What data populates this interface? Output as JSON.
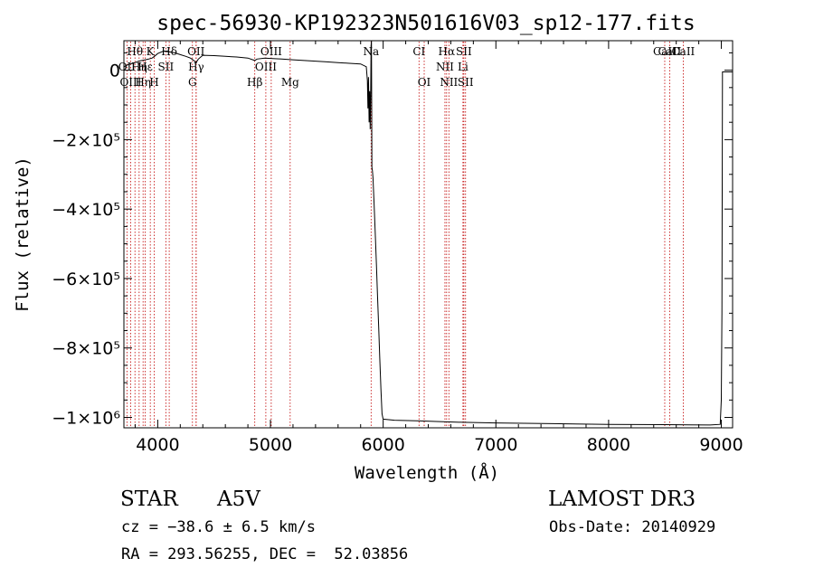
{
  "chart_data": {
    "type": "line",
    "title": "spec-56930-KP192323N501616V03_sp12-177.fits",
    "xlabel": "Wavelength (Å)",
    "ylabel": "Flux (relative)",
    "xlim": [
      3700,
      9100
    ],
    "ylim": [
      -1030000,
      85000
    ],
    "xticks": [
      {
        "value": 4000,
        "label": "4000"
      },
      {
        "value": 5000,
        "label": "5000"
      },
      {
        "value": 6000,
        "label": "6000"
      },
      {
        "value": 7000,
        "label": "7000"
      },
      {
        "value": 8000,
        "label": "8000"
      },
      {
        "value": 9000,
        "label": "9000"
      }
    ],
    "yticks": [
      {
        "value": 0,
        "label": "0"
      },
      {
        "value": -200000,
        "label": "−2×10⁵"
      },
      {
        "value": -400000,
        "label": "−4×10⁵"
      },
      {
        "value": -600000,
        "label": "−6×10⁵"
      },
      {
        "value": -800000,
        "label": "−8×10⁵"
      },
      {
        "value": -1000000,
        "label": "−1×10⁶"
      }
    ],
    "series": [
      {
        "x": [
          3700,
          3730,
          3760,
          3800,
          3830,
          3860,
          3890,
          3920,
          3950,
          3970,
          4000,
          4050,
          4100,
          4150,
          4200,
          4250,
          4290,
          4320,
          4340,
          4360,
          4400,
          4500,
          4600,
          4700,
          4800,
          4861,
          4880,
          4950,
          5000,
          5100,
          5200,
          5300,
          5400,
          5500,
          5600,
          5700,
          5800,
          5850,
          5860,
          5865,
          5870,
          5875,
          5880,
          5885,
          5890,
          5893,
          5896,
          5900,
          5905,
          5910,
          5920,
          5930,
          5940,
          5950,
          5960,
          5970,
          5980,
          5990,
          6000,
          6100,
          6300,
          6500,
          6700,
          7000,
          7500,
          8000,
          8500,
          8900,
          8990,
          9000,
          9005,
          9010,
          9100
        ],
        "y": [
          10000,
          15000,
          18000,
          22000,
          26000,
          28000,
          30000,
          32000,
          35000,
          40000,
          48000,
          55000,
          53000,
          50000,
          45000,
          40000,
          35000,
          28000,
          22000,
          32000,
          43000,
          42000,
          40000,
          38000,
          35000,
          28000,
          32000,
          35000,
          34000,
          32000,
          30000,
          28000,
          26000,
          24000,
          22000,
          20000,
          18000,
          10000,
          -30000,
          -110000,
          -20000,
          -150000,
          -60000,
          -170000,
          -50000,
          70000,
          85000,
          -280000,
          -290000,
          -310000,
          -390000,
          -470000,
          -560000,
          -650000,
          -740000,
          -830000,
          -920000,
          -990000,
          -1005000,
          -1008000,
          -1010000,
          -1012000,
          -1014000,
          -1016000,
          -1018000,
          -1020000,
          -1021000,
          -1022000,
          -1020000,
          -950000,
          -700000,
          -5000,
          -5000
        ]
      }
    ],
    "lines_top": [
      {
        "label": "Hθ",
        "x": 3798
      },
      {
        "label": "K",
        "x": 3934
      },
      {
        "label": "Hδ",
        "x": 4102
      },
      {
        "label": "OII",
        "x": 4340
      },
      {
        "label": "OIII",
        "x": 5007
      },
      {
        "label": "Na",
        "x": 5893
      },
      {
        "label": "CI",
        "x": 6318
      },
      {
        "label": "Hα",
        "x": 6563
      },
      {
        "label": "SII",
        "x": 6716
      },
      {
        "label": "CaII",
        "x": 8498
      },
      {
        "label": "CaII",
        "x": 8542
      },
      {
        "label": "CaII",
        "x": 8662
      }
    ],
    "lines_mid": [
      {
        "label": "OII",
        "x": 3727
      },
      {
        "label": "Hη",
        "x": 3835
      },
      {
        "label": "Hε",
        "x": 3889
      },
      {
        "label": "SII",
        "x": 4072
      },
      {
        "label": "Hγ",
        "x": 4341
      },
      {
        "label": "OIII",
        "x": 4959
      },
      {
        "label": "NII",
        "x": 6548
      },
      {
        "label": "Li",
        "x": 6708
      }
    ],
    "lines_bot": [
      {
        "label": "OIII",
        "x": 3760
      },
      {
        "label": "Hη",
        "x": 3870
      },
      {
        "label": "H",
        "x": 3969
      },
      {
        "label": "G",
        "x": 4308
      },
      {
        "label": "Hβ",
        "x": 4861
      },
      {
        "label": "Mg",
        "x": 5175
      },
      {
        "label": "OI",
        "x": 6364
      },
      {
        "label": "NII",
        "x": 6583
      },
      {
        "label": "SII",
        "x": 6731
      }
    ]
  },
  "info": {
    "object_class": "STAR",
    "subclass": "A5V",
    "survey": "LAMOST DR3",
    "cz": "cz = −38.6 ± 6.5 km/s",
    "obs_date": "Obs-Date: 20140929",
    "coords": "RA = 293.56255, DEC =  52.03856"
  },
  "colors": {
    "line": "#000000",
    "marker": "#c00000"
  }
}
